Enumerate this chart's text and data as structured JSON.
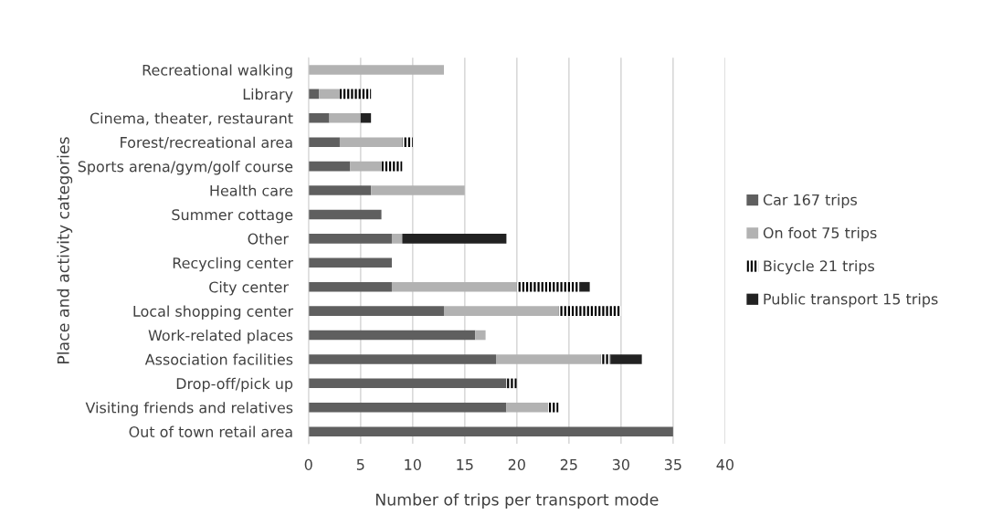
{
  "chart_data": {
    "type": "bar",
    "orientation": "horizontal",
    "stacked": true,
    "xlabel": "Number of trips per transport mode",
    "ylabel": "Place and activity categories",
    "categories": [
      "Recreational walking",
      "Library",
      "Cinema, theater, restaurant",
      "Forest/recreational area",
      "Sports arena/gym/golf course",
      "Health care",
      "Summer cottage",
      "Other ",
      "Recycling center",
      "City center ",
      "Local shopping center",
      "Work-related places",
      "Association facilities",
      "Drop-off/pick up",
      "Visiting friends and relatives",
      "Out of town retail area"
    ],
    "series": [
      {
        "name": "Car 167 trips",
        "color": "#5f5f5f",
        "values": [
          0,
          1,
          2,
          3,
          4,
          6,
          7,
          8,
          8,
          8,
          13,
          16,
          18,
          19,
          19,
          35
        ]
      },
      {
        "name": "On foot 75 trips",
        "color": "#b2b2b2",
        "values": [
          13,
          2,
          3,
          6,
          3,
          9,
          0,
          1,
          0,
          12,
          11,
          1,
          10,
          0,
          4,
          0
        ]
      },
      {
        "name": "Bicycle 21 trips",
        "color": "#000000",
        "values": [
          0,
          3,
          0,
          1,
          2,
          0,
          0,
          0,
          0,
          6,
          6,
          0,
          1,
          1,
          1,
          0
        ]
      },
      {
        "name": "Public transport 15 trips",
        "color": "#222222",
        "values": [
          0,
          0,
          1,
          0,
          0,
          0,
          0,
          10,
          0,
          1,
          0,
          0,
          3,
          0,
          0,
          0
        ]
      }
    ],
    "xlim": [
      0,
      40
    ],
    "xticks": [
      0,
      5,
      10,
      15,
      20,
      25,
      30,
      35,
      40
    ],
    "grid": "x",
    "legend": "right"
  }
}
